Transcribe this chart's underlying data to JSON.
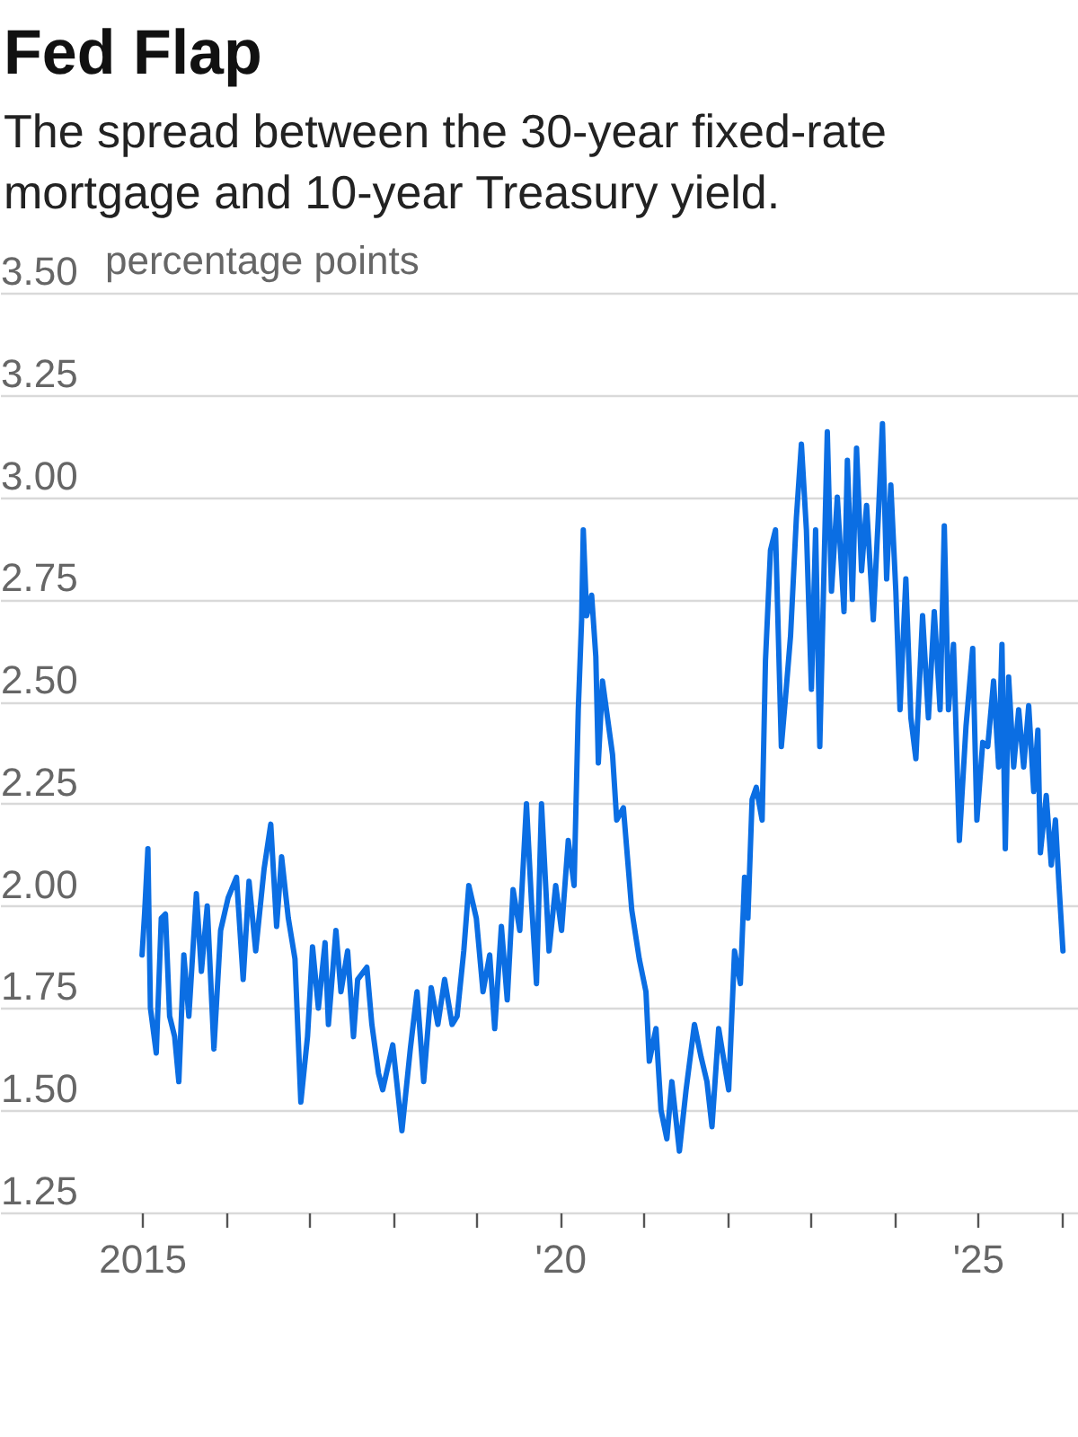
{
  "chart_data": {
    "type": "line",
    "title": "Fed Flap",
    "subtitle": "The spread between the 30-year fixed-rate mortgage and 10-year Treasury yield.",
    "ylabel": "percentage points",
    "x": [
      2015.0,
      2015.03,
      2015.07,
      2015.1,
      2015.17,
      2015.23,
      2015.28,
      2015.33,
      2015.39,
      2015.44,
      2015.5,
      2015.56,
      2015.65,
      2015.71,
      2015.78,
      2015.86,
      2015.94,
      2016.03,
      2016.13,
      2016.21,
      2016.28,
      2016.36,
      2016.46,
      2016.54,
      2016.61,
      2016.67,
      2016.75,
      2016.83,
      2016.9,
      2016.98,
      2017.04,
      2017.11,
      2017.19,
      2017.23,
      2017.32,
      2017.38,
      2017.46,
      2017.53,
      2017.58,
      2017.69,
      2017.75,
      2017.83,
      2017.88,
      2018.0,
      2018.11,
      2018.21,
      2018.29,
      2018.37,
      2018.46,
      2018.54,
      2018.62,
      2018.71,
      2018.77,
      2018.85,
      2018.91,
      2019.0,
      2019.08,
      2019.16,
      2019.22,
      2019.3,
      2019.37,
      2019.44,
      2019.52,
      2019.6,
      2019.66,
      2019.72,
      2019.78,
      2019.87,
      2019.95,
      2020.02,
      2020.1,
      2020.17,
      2020.22,
      2020.26,
      2020.28,
      2020.32,
      2020.38,
      2020.43,
      2020.46,
      2020.51,
      2020.57,
      2020.63,
      2020.68,
      2020.76,
      2020.86,
      2020.95,
      2021.03,
      2021.07,
      2021.15,
      2021.21,
      2021.28,
      2021.34,
      2021.43,
      2021.51,
      2021.61,
      2021.69,
      2021.76,
      2021.82,
      2021.9,
      2022.02,
      2022.09,
      2022.16,
      2022.21,
      2022.25,
      2022.3,
      2022.35,
      2022.42,
      2022.46,
      2022.52,
      2022.58,
      2022.65,
      2022.7,
      2022.76,
      2022.83,
      2022.89,
      2022.95,
      2023.01,
      2023.06,
      2023.11,
      2023.2,
      2023.25,
      2023.32,
      2023.4,
      2023.44,
      2023.5,
      2023.55,
      2023.61,
      2023.67,
      2023.75,
      2023.81,
      2023.86,
      2023.91,
      2023.96,
      2024.02,
      2024.07,
      2024.14,
      2024.2,
      2024.26,
      2024.34,
      2024.41,
      2024.48,
      2024.55,
      2024.6,
      2024.65,
      2024.71,
      2024.78,
      2024.86,
      2024.94,
      2024.99,
      2025.06,
      2025.12,
      2025.19,
      2025.25,
      2025.29,
      2025.33,
      2025.37,
      2025.43,
      2025.49,
      2025.55,
      2025.61,
      2025.67,
      2025.72,
      2025.75,
      2025.82,
      2025.88,
      2025.93,
      2025.97,
      2026.02
    ],
    "series": [
      {
        "color": "#0b6ee3",
        "values": [
          1.88,
          1.98,
          2.14,
          1.75,
          1.64,
          1.97,
          1.98,
          1.73,
          1.68,
          1.57,
          1.88,
          1.73,
          2.03,
          1.84,
          2.0,
          1.65,
          1.94,
          2.02,
          2.07,
          1.82,
          2.06,
          1.89,
          2.09,
          2.2,
          1.95,
          2.12,
          1.97,
          1.87,
          1.52,
          1.68,
          1.9,
          1.75,
          1.91,
          1.71,
          1.94,
          1.79,
          1.89,
          1.68,
          1.82,
          1.85,
          1.71,
          1.59,
          1.55,
          1.66,
          1.45,
          1.65,
          1.79,
          1.57,
          1.8,
          1.71,
          1.82,
          1.71,
          1.73,
          1.89,
          2.05,
          1.97,
          1.79,
          1.88,
          1.7,
          1.95,
          1.77,
          2.04,
          1.94,
          2.25,
          2.01,
          1.81,
          2.25,
          1.89,
          2.05,
          1.94,
          2.16,
          2.05,
          2.48,
          2.7,
          2.92,
          2.71,
          2.76,
          2.61,
          2.35,
          2.55,
          2.46,
          2.37,
          2.21,
          2.24,
          1.99,
          1.87,
          1.79,
          1.62,
          1.7,
          1.5,
          1.43,
          1.57,
          1.4,
          1.55,
          1.71,
          1.63,
          1.57,
          1.46,
          1.7,
          1.55,
          1.89,
          1.81,
          2.07,
          1.97,
          2.26,
          2.29,
          2.21,
          2.6,
          2.87,
          2.92,
          2.39,
          2.51,
          2.66,
          2.95,
          3.13,
          2.92,
          2.53,
          2.92,
          2.39,
          3.16,
          2.77,
          3.0,
          2.72,
          3.09,
          2.75,
          3.12,
          2.82,
          2.98,
          2.7,
          2.95,
          3.18,
          2.8,
          3.03,
          2.77,
          2.48,
          2.8,
          2.46,
          2.36,
          2.71,
          2.46,
          2.72,
          2.48,
          2.93,
          2.48,
          2.64,
          2.16,
          2.44,
          2.63,
          2.21,
          2.4,
          2.39,
          2.55,
          2.34,
          2.64,
          2.14,
          2.56,
          2.34,
          2.48,
          2.34,
          2.49,
          2.28,
          2.43,
          2.13,
          2.27,
          2.1,
          2.21,
          2.06,
          1.89
        ]
      }
    ],
    "xlim": [
      2013.3,
      2026.2
    ],
    "xticks": [
      {
        "value": 2015,
        "label": "2015"
      },
      {
        "value": 2016,
        "label": null
      },
      {
        "value": 2017,
        "label": null
      },
      {
        "value": 2018,
        "label": null
      },
      {
        "value": 2019,
        "label": null
      },
      {
        "value": 2020,
        "label": "'20"
      },
      {
        "value": 2021,
        "label": null
      },
      {
        "value": 2022,
        "label": null
      },
      {
        "value": 2023,
        "label": null
      },
      {
        "value": 2024,
        "label": null
      },
      {
        "value": 2025,
        "label": "'25"
      },
      {
        "value": 2026,
        "label": null
      }
    ],
    "ylim": [
      1.25,
      3.5
    ],
    "yticks": [
      {
        "value": 1.25,
        "label": "1.25"
      },
      {
        "value": 1.5,
        "label": "1.50"
      },
      {
        "value": 1.75,
        "label": "1.75"
      },
      {
        "value": 2,
        "label": "2.00"
      },
      {
        "value": 2.25,
        "label": "2.25"
      },
      {
        "value": 2.5,
        "label": "2.50"
      },
      {
        "value": 2.75,
        "label": "2.75"
      },
      {
        "value": 3,
        "label": "3.00"
      },
      {
        "value": 3.25,
        "label": "3.25"
      },
      {
        "value": 3.5,
        "label": "3.50"
      }
    ],
    "grid": "y",
    "legend": false,
    "marker": "none",
    "line_style": "solid"
  }
}
